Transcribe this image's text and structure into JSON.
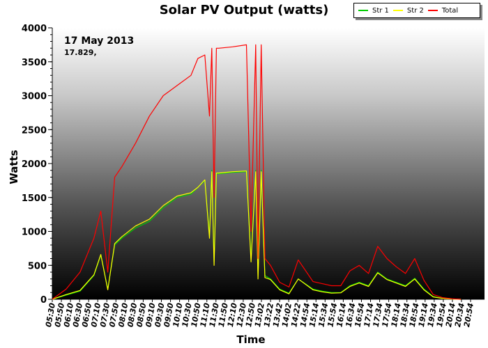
{
  "chart_data": {
    "type": "line",
    "title": "Solar PV Output (watts)",
    "xlabel": "Time",
    "ylabel": "Watts",
    "ylim": [
      0,
      4000
    ],
    "yticks": [
      0,
      500,
      1000,
      1500,
      2000,
      2500,
      3000,
      3500,
      4000
    ],
    "xlim_minutes": [
      330,
      1265
    ],
    "xtick_labels": [
      "05:30",
      "05:50",
      "06:10",
      "06:30",
      "06:50",
      "07:10",
      "07:30",
      "07:50",
      "08:10",
      "08:30",
      "08:50",
      "09:10",
      "09:30",
      "09:50",
      "10:10",
      "10:30",
      "10:50",
      "11:10",
      "11:30",
      "11:50",
      "12:10",
      "12:30",
      "12:50",
      "13:02",
      "13:22",
      "13:42",
      "14:02",
      "14:22",
      "14:54",
      "15:14",
      "15:34",
      "15:54",
      "16:14",
      "16:34",
      "16:54",
      "17:14",
      "17:34",
      "17:54",
      "18:14",
      "18:34",
      "18:54",
      "19:14",
      "19:34",
      "19:54",
      "20:14",
      "20:34",
      "20:54"
    ],
    "annotation_date": "17 May 2013",
    "annotation_value": "17.829,",
    "legend_position": "top-right",
    "grid": false,
    "background": "vertical gradient light grey to black",
    "series": [
      {
        "name": "Str 1",
        "color": "#00cc00",
        "x": [
          "05:30",
          "06:00",
          "06:30",
          "07:00",
          "07:15",
          "07:30",
          "07:45",
          "08:00",
          "08:30",
          "09:00",
          "09:30",
          "10:00",
          "10:30",
          "10:45",
          "11:00",
          "11:10",
          "11:15",
          "11:20",
          "11:25",
          "11:30",
          "12:00",
          "12:30",
          "12:40",
          "12:50",
          "12:55",
          "13:02",
          "13:10",
          "13:22",
          "13:42",
          "14:02",
          "14:22",
          "14:54",
          "15:14",
          "15:34",
          "15:54",
          "16:14",
          "16:34",
          "16:54",
          "17:14",
          "17:34",
          "17:54",
          "18:14",
          "18:34",
          "18:54",
          "19:14",
          "19:34",
          "19:54",
          "20:14"
        ],
        "y": [
          0,
          60,
          120,
          350,
          650,
          150,
          800,
          900,
          1050,
          1150,
          1350,
          1500,
          1550,
          1650,
          1750,
          950,
          1900,
          550,
          1850,
          1850,
          1870,
          1880,
          600,
          1900,
          350,
          1900,
          350,
          300,
          150,
          90,
          300,
          150,
          120,
          100,
          100,
          200,
          250,
          200,
          400,
          300,
          250,
          200,
          310,
          150,
          40,
          15,
          5,
          0
        ]
      },
      {
        "name": "Str 2",
        "color": "#ffff00",
        "x": [
          "05:30",
          "06:00",
          "06:30",
          "07:00",
          "07:15",
          "07:30",
          "07:45",
          "08:00",
          "08:30",
          "09:00",
          "09:30",
          "10:00",
          "10:30",
          "10:45",
          "11:00",
          "11:10",
          "11:15",
          "11:20",
          "11:25",
          "11:30",
          "12:00",
          "12:30",
          "12:40",
          "12:50",
          "12:55",
          "13:02",
          "13:10",
          "13:22",
          "13:42",
          "14:02",
          "14:22",
          "14:54",
          "15:14",
          "15:34",
          "15:54",
          "16:14",
          "16:34",
          "16:54",
          "17:14",
          "17:34",
          "17:54",
          "18:14",
          "18:34",
          "18:54",
          "19:14",
          "19:34",
          "19:54",
          "20:14"
        ],
        "y": [
          0,
          70,
          130,
          360,
          660,
          140,
          820,
          920,
          1080,
          1180,
          1380,
          1520,
          1570,
          1650,
          1760,
          900,
          1880,
          500,
          1860,
          1860,
          1880,
          1890,
          550,
          1880,
          300,
          1880,
          320,
          290,
          140,
          80,
          300,
          140,
          110,
          90,
          95,
          190,
          240,
          190,
          390,
          290,
          240,
          190,
          300,
          140,
          35,
          12,
          4,
          0
        ]
      },
      {
        "name": "Total",
        "color": "#ff0000",
        "x": [
          "05:30",
          "06:00",
          "06:30",
          "07:00",
          "07:15",
          "07:30",
          "07:45",
          "08:00",
          "08:30",
          "09:00",
          "09:30",
          "10:00",
          "10:30",
          "10:45",
          "11:00",
          "11:10",
          "11:15",
          "11:20",
          "11:25",
          "11:30",
          "12:00",
          "12:30",
          "12:40",
          "12:50",
          "12:55",
          "13:02",
          "13:10",
          "13:22",
          "13:42",
          "14:02",
          "14:22",
          "14:54",
          "15:14",
          "15:34",
          "15:54",
          "16:14",
          "16:34",
          "16:54",
          "17:14",
          "17:34",
          "17:54",
          "18:14",
          "18:34",
          "18:54",
          "19:14",
          "19:34",
          "19:54",
          "20:14"
        ],
        "y": [
          0,
          150,
          400,
          900,
          1300,
          400,
          1800,
          1950,
          2300,
          2700,
          3000,
          3150,
          3300,
          3550,
          3600,
          2700,
          3700,
          1500,
          3700,
          3700,
          3720,
          3750,
          1000,
          3750,
          600,
          3750,
          600,
          500,
          250,
          180,
          580,
          260,
          230,
          200,
          200,
          420,
          500,
          380,
          780,
          600,
          480,
          380,
          600,
          280,
          70,
          25,
          8,
          0
        ]
      }
    ]
  },
  "legend": {
    "items": [
      {
        "label": "Str 1",
        "color": "#00cc00"
      },
      {
        "label": "Str 2",
        "color": "#ffff00"
      },
      {
        "label": "Total",
        "color": "#ff0000"
      }
    ]
  }
}
